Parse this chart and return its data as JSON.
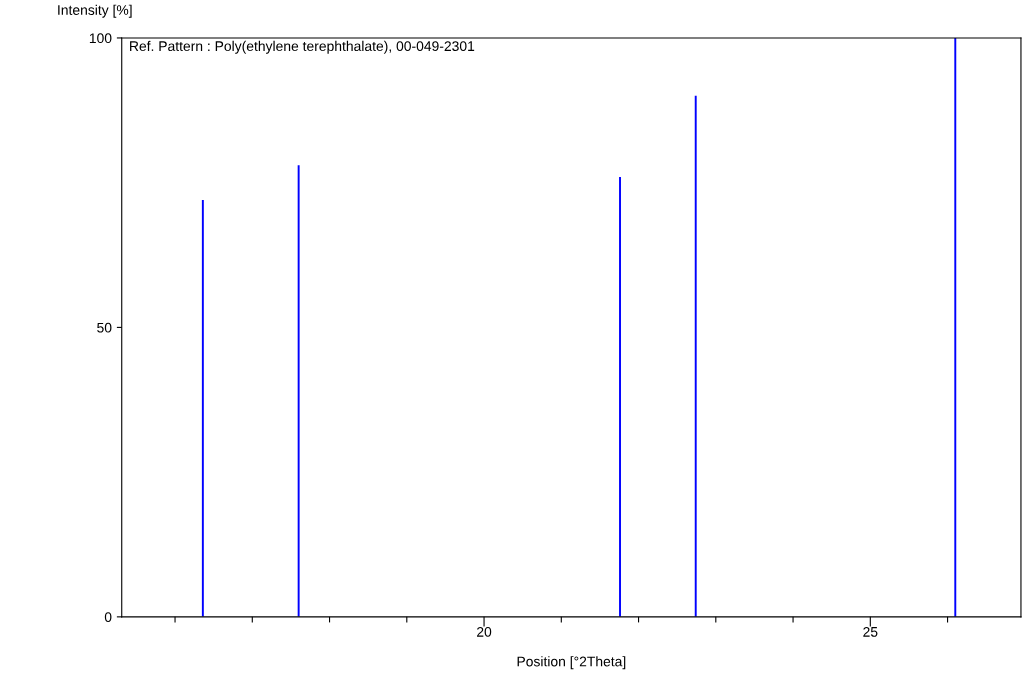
{
  "chart_data": {
    "type": "bar",
    "xlabel": "Position [°2Theta]",
    "ylabel": "Intensity [%]",
    "annotations": [
      "Ref. Pattern : Poly(ethylene terephthalate), 00-049-2301"
    ],
    "x": [
      16.36,
      17.6,
      21.76,
      22.74,
      26.1
    ],
    "values": [
      72,
      78,
      76,
      90,
      100
    ],
    "color": "#0000ff",
    "xlim": [
      15.31,
      26.95
    ],
    "xticks": [
      {
        "value": 16,
        "label": null
      },
      {
        "value": 17,
        "label": null
      },
      {
        "value": 18,
        "label": null
      },
      {
        "value": 19,
        "label": null
      },
      20,
      {
        "value": 21,
        "label": null
      },
      {
        "value": 22,
        "label": null
      },
      {
        "value": 23,
        "label": null
      },
      {
        "value": 24,
        "label": null
      },
      25,
      {
        "value": 26,
        "label": null
      }
    ],
    "ylim": [
      0,
      100
    ],
    "yticks": [
      0,
      50,
      100
    ],
    "grid": false
  }
}
